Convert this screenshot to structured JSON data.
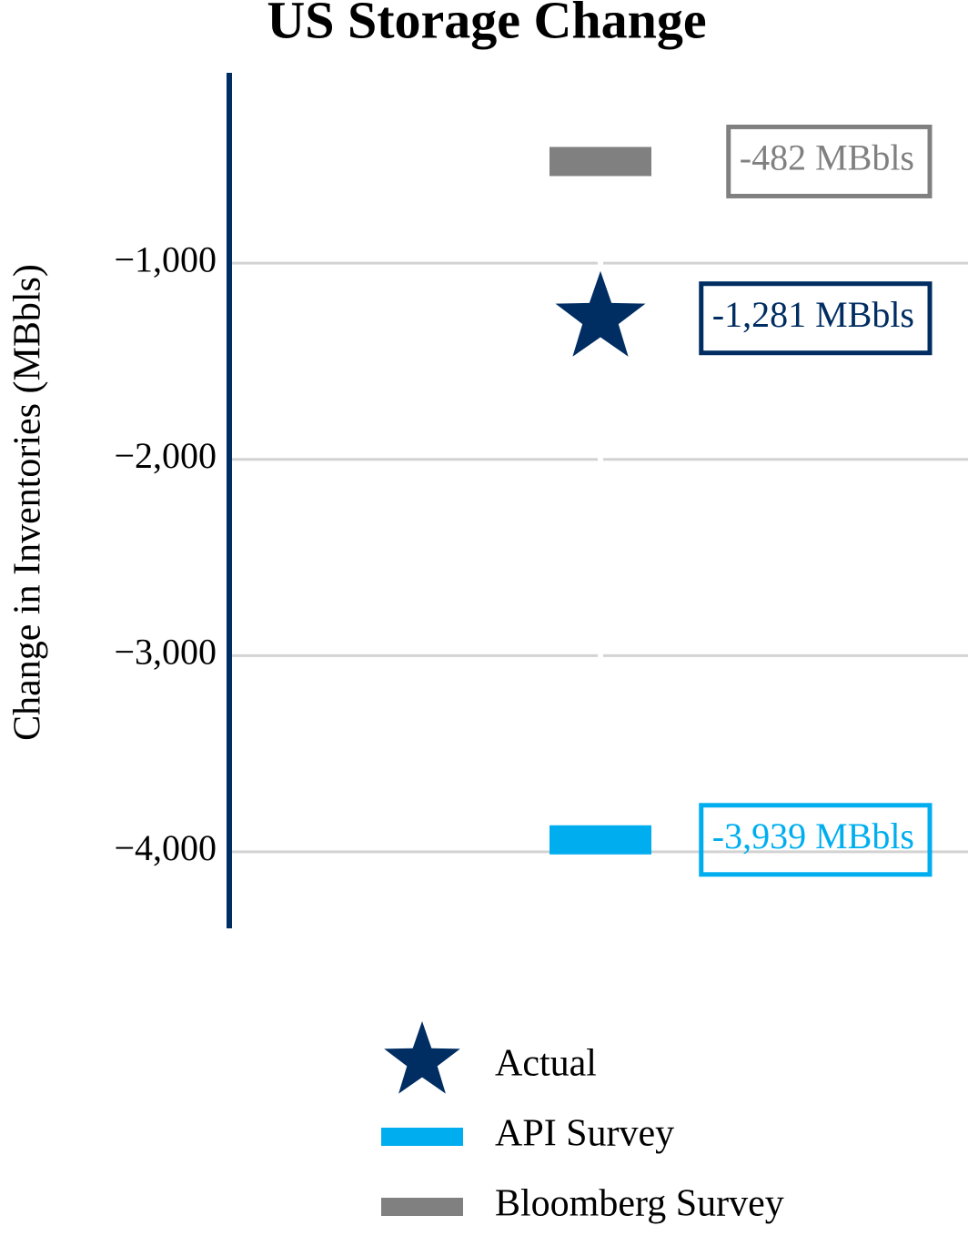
{
  "chart_data": {
    "type": "marker",
    "title": "US Storage Change",
    "y_label": "Change in Inventories (MBbls)",
    "ylim": [
      -4390,
      -30
    ],
    "yticks": [
      {
        "value": -1000,
        "label": "−1,000"
      },
      {
        "value": -2000,
        "label": "−2,000"
      },
      {
        "value": -3000,
        "label": "−3,000"
      },
      {
        "value": -4000,
        "label": "−4,000"
      }
    ],
    "grid": true,
    "legend": "bottom",
    "series": [
      {
        "name": "Actual",
        "color": "#002d62",
        "marker": "star",
        "values": [
          -1281
        ],
        "value_labels": [
          "-1,281 MBbls"
        ]
      },
      {
        "name": "API Survey",
        "color": "#00aeef",
        "marker": "bar",
        "values": [
          -3939
        ],
        "value_labels": [
          "-3,939 MBbls"
        ]
      },
      {
        "name": "Bloomberg Survey",
        "color": "#808080",
        "marker": "bar",
        "values": [
          -482
        ],
        "value_labels": [
          "-482 MBbls"
        ]
      }
    ]
  }
}
